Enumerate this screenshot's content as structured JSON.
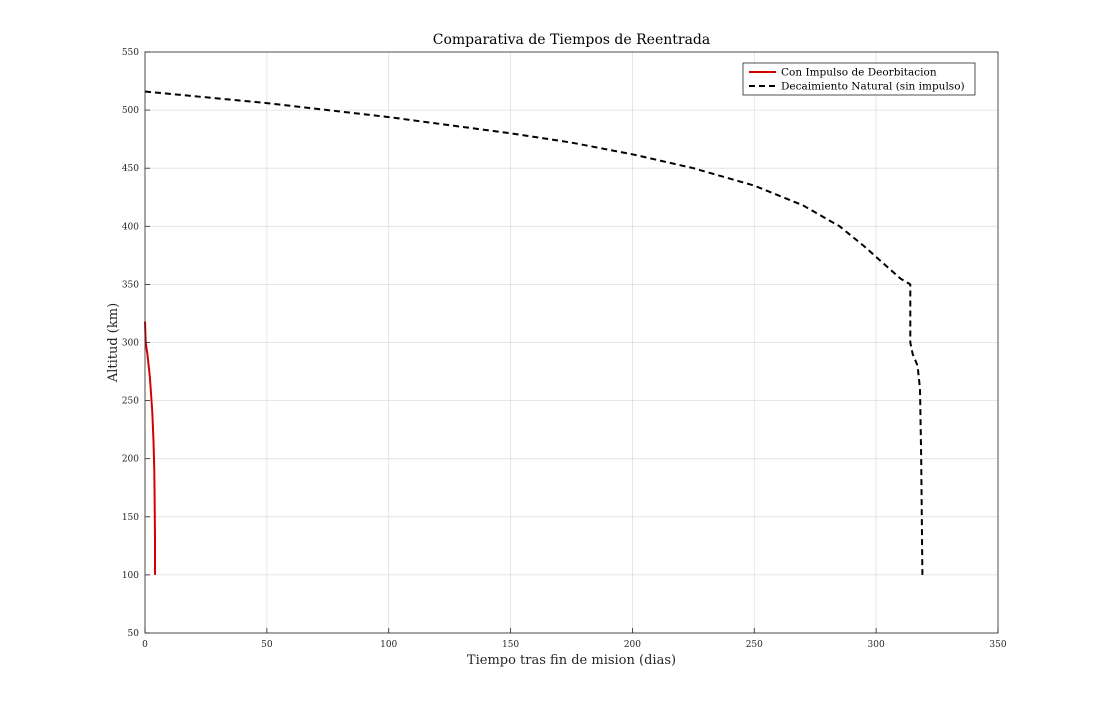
{
  "chart_data": {
    "type": "line",
    "title": "Comparativa de Tiempos de Reentrada",
    "xlabel": "Tiempo tras fin de mision (dias)",
    "ylabel": "Altitud (km)",
    "xlim": [
      0,
      350
    ],
    "ylim": [
      50,
      550
    ],
    "xticks": [
      0,
      50,
      100,
      150,
      200,
      250,
      300,
      350
    ],
    "yticks": [
      50,
      100,
      150,
      200,
      250,
      300,
      350,
      400,
      450,
      500,
      550
    ],
    "grid": true,
    "legend_position": "top-right",
    "series": [
      {
        "name": "Con Impulso de Deorbitacion",
        "color": "#d40000",
        "style": "solid",
        "x": [
          0,
          0.3,
          1.0,
          2.0,
          3.0,
          3.5,
          3.8,
          4.0,
          4.1,
          4.1
        ],
        "y": [
          318,
          300,
          290,
          270,
          240,
          215,
          190,
          160,
          130,
          100
        ]
      },
      {
        "name": "Decaimiento Natural (sin impulso)",
        "color": "#000000",
        "style": "dashed",
        "x": [
          0,
          25,
          50,
          75,
          100,
          125,
          150,
          175,
          200,
          225,
          250,
          270,
          285,
          295,
          303,
          310,
          314,
          314,
          315,
          317,
          318,
          318.5,
          319
        ],
        "y": [
          516,
          511,
          506,
          500,
          494,
          487,
          480,
          472,
          462,
          450,
          435,
          418,
          400,
          383,
          368,
          355,
          350,
          300,
          290,
          280,
          260,
          200,
          100
        ]
      }
    ]
  }
}
